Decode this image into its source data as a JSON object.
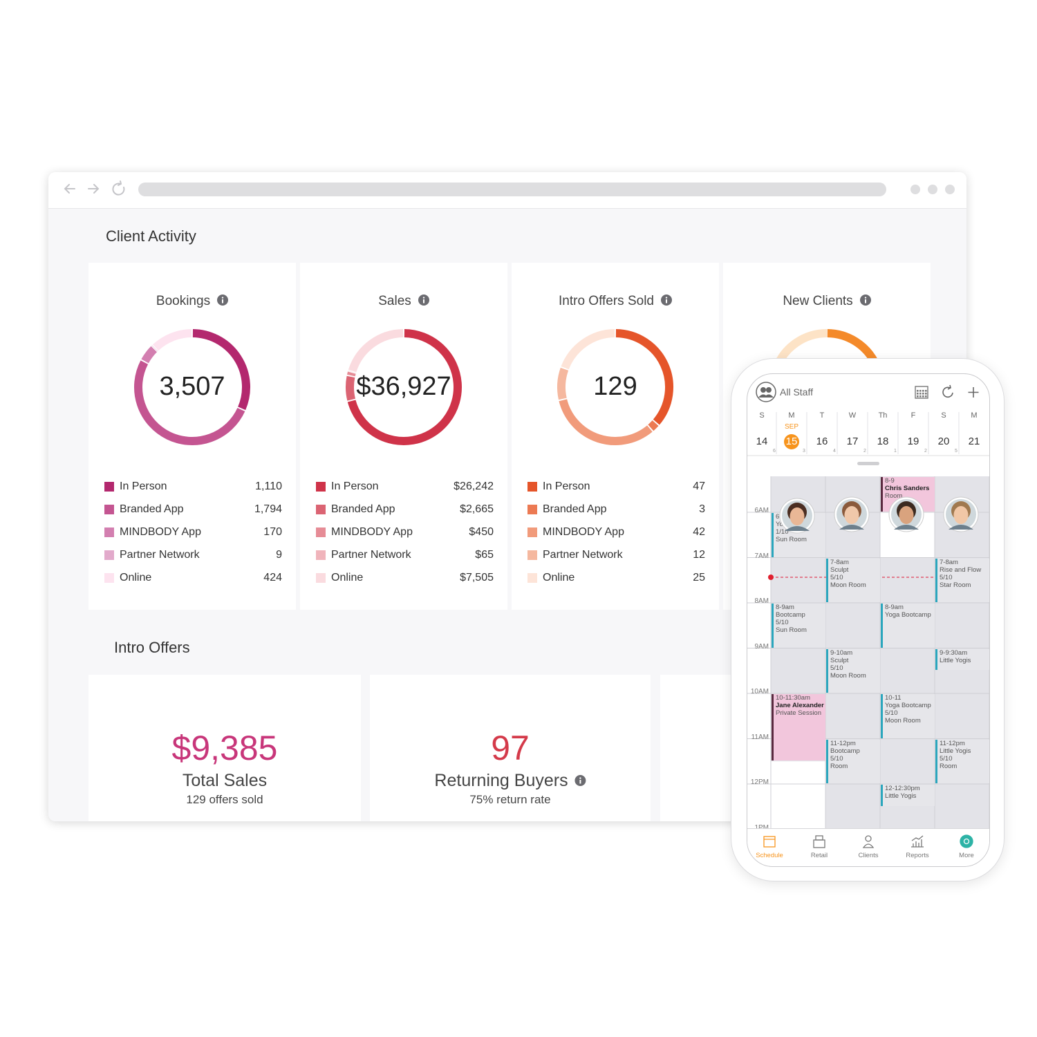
{
  "client_activity": {
    "heading": "Client Activity",
    "cards": [
      {
        "title": "Bookings",
        "total": "3,507",
        "rows": [
          {
            "label": "In Person",
            "value": 1110,
            "value_label": "1,110",
            "color": "#b3286e"
          },
          {
            "label": "Branded App",
            "value": 1794,
            "value_label": "1,794",
            "color": "#c45591"
          },
          {
            "label": "MINDBODY App",
            "value": 170,
            "color": "#d37fb0"
          },
          {
            "label": "Partner Network",
            "value": 9,
            "color": "#e2aacb"
          },
          {
            "label": "Online",
            "value": 424,
            "color": "#fde3ef"
          }
        ]
      },
      {
        "title": "Sales",
        "total": "$36,927",
        "rows": [
          {
            "label": "In Person",
            "value": 26242,
            "value_label": "$26,242",
            "color": "#cf3349"
          },
          {
            "label": "Branded App",
            "value": 2665,
            "value_label": "$2,665",
            "color": "#db6473"
          },
          {
            "label": "MINDBODY App",
            "value": 450,
            "value_label": "$450",
            "color": "#e68c96"
          },
          {
            "label": "Partner Network",
            "value": 65,
            "value_label": "$65",
            "color": "#f0b4bb"
          },
          {
            "label": "Online",
            "value": 7505,
            "value_label": "$7,505",
            "color": "#fadbdf"
          }
        ]
      },
      {
        "title": "Intro Offers Sold",
        "total": "129",
        "rows": [
          {
            "label": "In Person",
            "value": 47,
            "color": "#e5552a"
          },
          {
            "label": "Branded App",
            "value": 3,
            "color": "#ec7a53"
          },
          {
            "label": "MINDBODY App",
            "value": 42,
            "color": "#f19b7b"
          },
          {
            "label": "Partner Network",
            "value": 12,
            "color": "#f5b89f"
          },
          {
            "label": "Online",
            "value": 25,
            "color": "#fde4d8"
          }
        ]
      },
      {
        "title": "New Clients"
      }
    ]
  },
  "intro_offers": {
    "heading": "Intro Offers",
    "cards": [
      {
        "value": "$9,385",
        "label": "Total Sales",
        "detail": "129 offers sold",
        "color": "#c8367a"
      },
      {
        "value": "97",
        "label": "Returning Buyers",
        "detail": "75% return rate",
        "color": "#d43a4a"
      }
    ]
  },
  "phone": {
    "staff_filter": "All Staff",
    "month": "SEP",
    "days": [
      {
        "letter": "S",
        "date": "14",
        "count": "6"
      },
      {
        "letter": "M",
        "date": "15",
        "count": "3"
      },
      {
        "letter": "T",
        "date": "16",
        "count": "4"
      },
      {
        "letter": "W",
        "date": "17",
        "count": "2"
      },
      {
        "letter": "Th",
        "date": "18",
        "count": "1"
      },
      {
        "letter": "F",
        "date": "19",
        "count": "2"
      },
      {
        "letter": "S",
        "date": "20",
        "count": "5"
      },
      {
        "letter": "M",
        "date": "21"
      }
    ],
    "times": [
      "6AM",
      "7AM",
      "8AM",
      "9AM",
      "10AM",
      "11AM",
      "12PM",
      "1PM"
    ],
    "events": [
      {
        "lines": [
          "8-9",
          "Chris Sanders",
          "Room"
        ]
      },
      {
        "lines": [
          "6",
          "Yo",
          "1/10",
          "Sun Room"
        ]
      },
      {
        "lines": [
          "7-8am",
          "Sculpt",
          "5/10",
          "Moon Room"
        ]
      },
      {
        "lines": [
          "7-8am",
          "Rise and Flow",
          "5/10",
          "Star Room"
        ]
      },
      {
        "lines": [
          "8-9am",
          "Bootcamp",
          "5/10",
          "Sun Room"
        ]
      },
      {
        "lines": [
          "8-9am",
          "Yoga Bootcamp"
        ]
      },
      {
        "lines": [
          "9-10am",
          "Sculpt",
          "5/10",
          "Moon Room"
        ]
      },
      {
        "lines": [
          "9-9:30am",
          "Little Yogis"
        ]
      },
      {
        "lines": [
          "10-11:30am",
          "Jane Alexander",
          "Private Session"
        ]
      },
      {
        "lines": [
          "10-11",
          "Yoga Bootcamp",
          "5/10",
          "Moon Room"
        ]
      },
      {
        "lines": [
          "11-12pm",
          "Bootcamp",
          "5/10",
          "Room"
        ]
      },
      {
        "lines": [
          "11-12pm",
          "Little Yogis",
          "5/10",
          "Room"
        ]
      },
      {
        "lines": [
          "12-12:30pm",
          "Little Yogis"
        ]
      }
    ],
    "nav": [
      "Schedule",
      "Retail",
      "Clients",
      "Reports",
      "More"
    ]
  }
}
